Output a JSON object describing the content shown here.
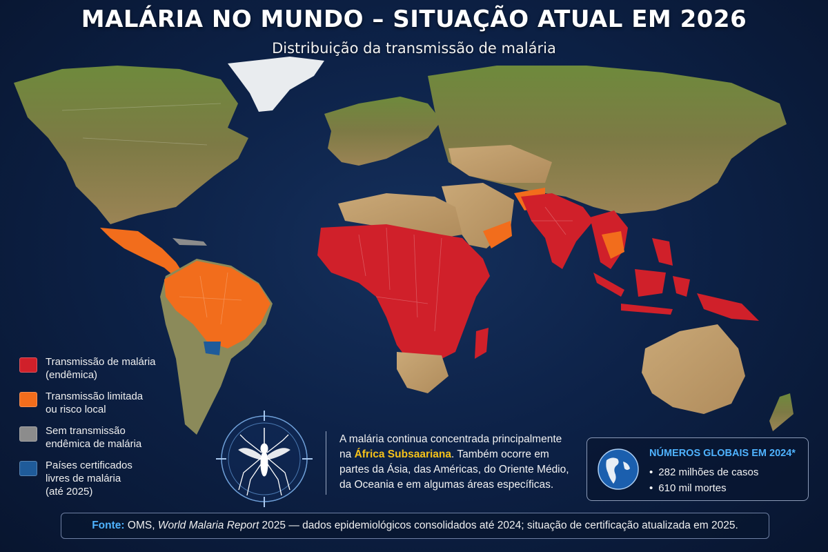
{
  "header": {
    "title": "MALÁRIA NO MUNDO – SITUAÇÃO ATUAL EM 2026",
    "subtitle": "Distribuição da transmissão de malária"
  },
  "colors": {
    "endemic": "#d0202a",
    "limited": "#f26d1c",
    "no_transmission": "#8c8c8c",
    "certified_free": "#1f5b9a",
    "highlight": "#f6c21a",
    "accent_blue": "#4fb3ff"
  },
  "legend": [
    {
      "key": "endemic",
      "lines": [
        "Transmissão de malária",
        "(endêmica)"
      ]
    },
    {
      "key": "limited",
      "lines": [
        "Transmissão limitada",
        "ou risco local"
      ]
    },
    {
      "key": "no_transmission",
      "lines": [
        "Sem transmissão",
        "endêmica de malária"
      ]
    },
    {
      "key": "certified_free",
      "lines": [
        "Países certificados",
        "livres de malária",
        "(até 2025)"
      ]
    }
  ],
  "note": {
    "part1": "A malária continua concentrada principalmente na ",
    "highlight": "África Subsaariana",
    "part2": ". Também ocorre em partes da Ásia, das Américas, do Oriente Médio, da Oceania e em algumas áreas específicas."
  },
  "stats": {
    "title": "NÚMEROS GLOBAIS EM 2024*",
    "items": [
      "282 milhões de casos",
      "610 mil mortes"
    ]
  },
  "source": {
    "label": "Fonte:",
    "org": " OMS, ",
    "report": "World Malaria Report",
    "rest": " 2025 — dados epidemiológicos consolidados até 2024; situação de certificação atualizada em 2025."
  },
  "icons": [
    "mosquito-icon",
    "globe-icon"
  ]
}
